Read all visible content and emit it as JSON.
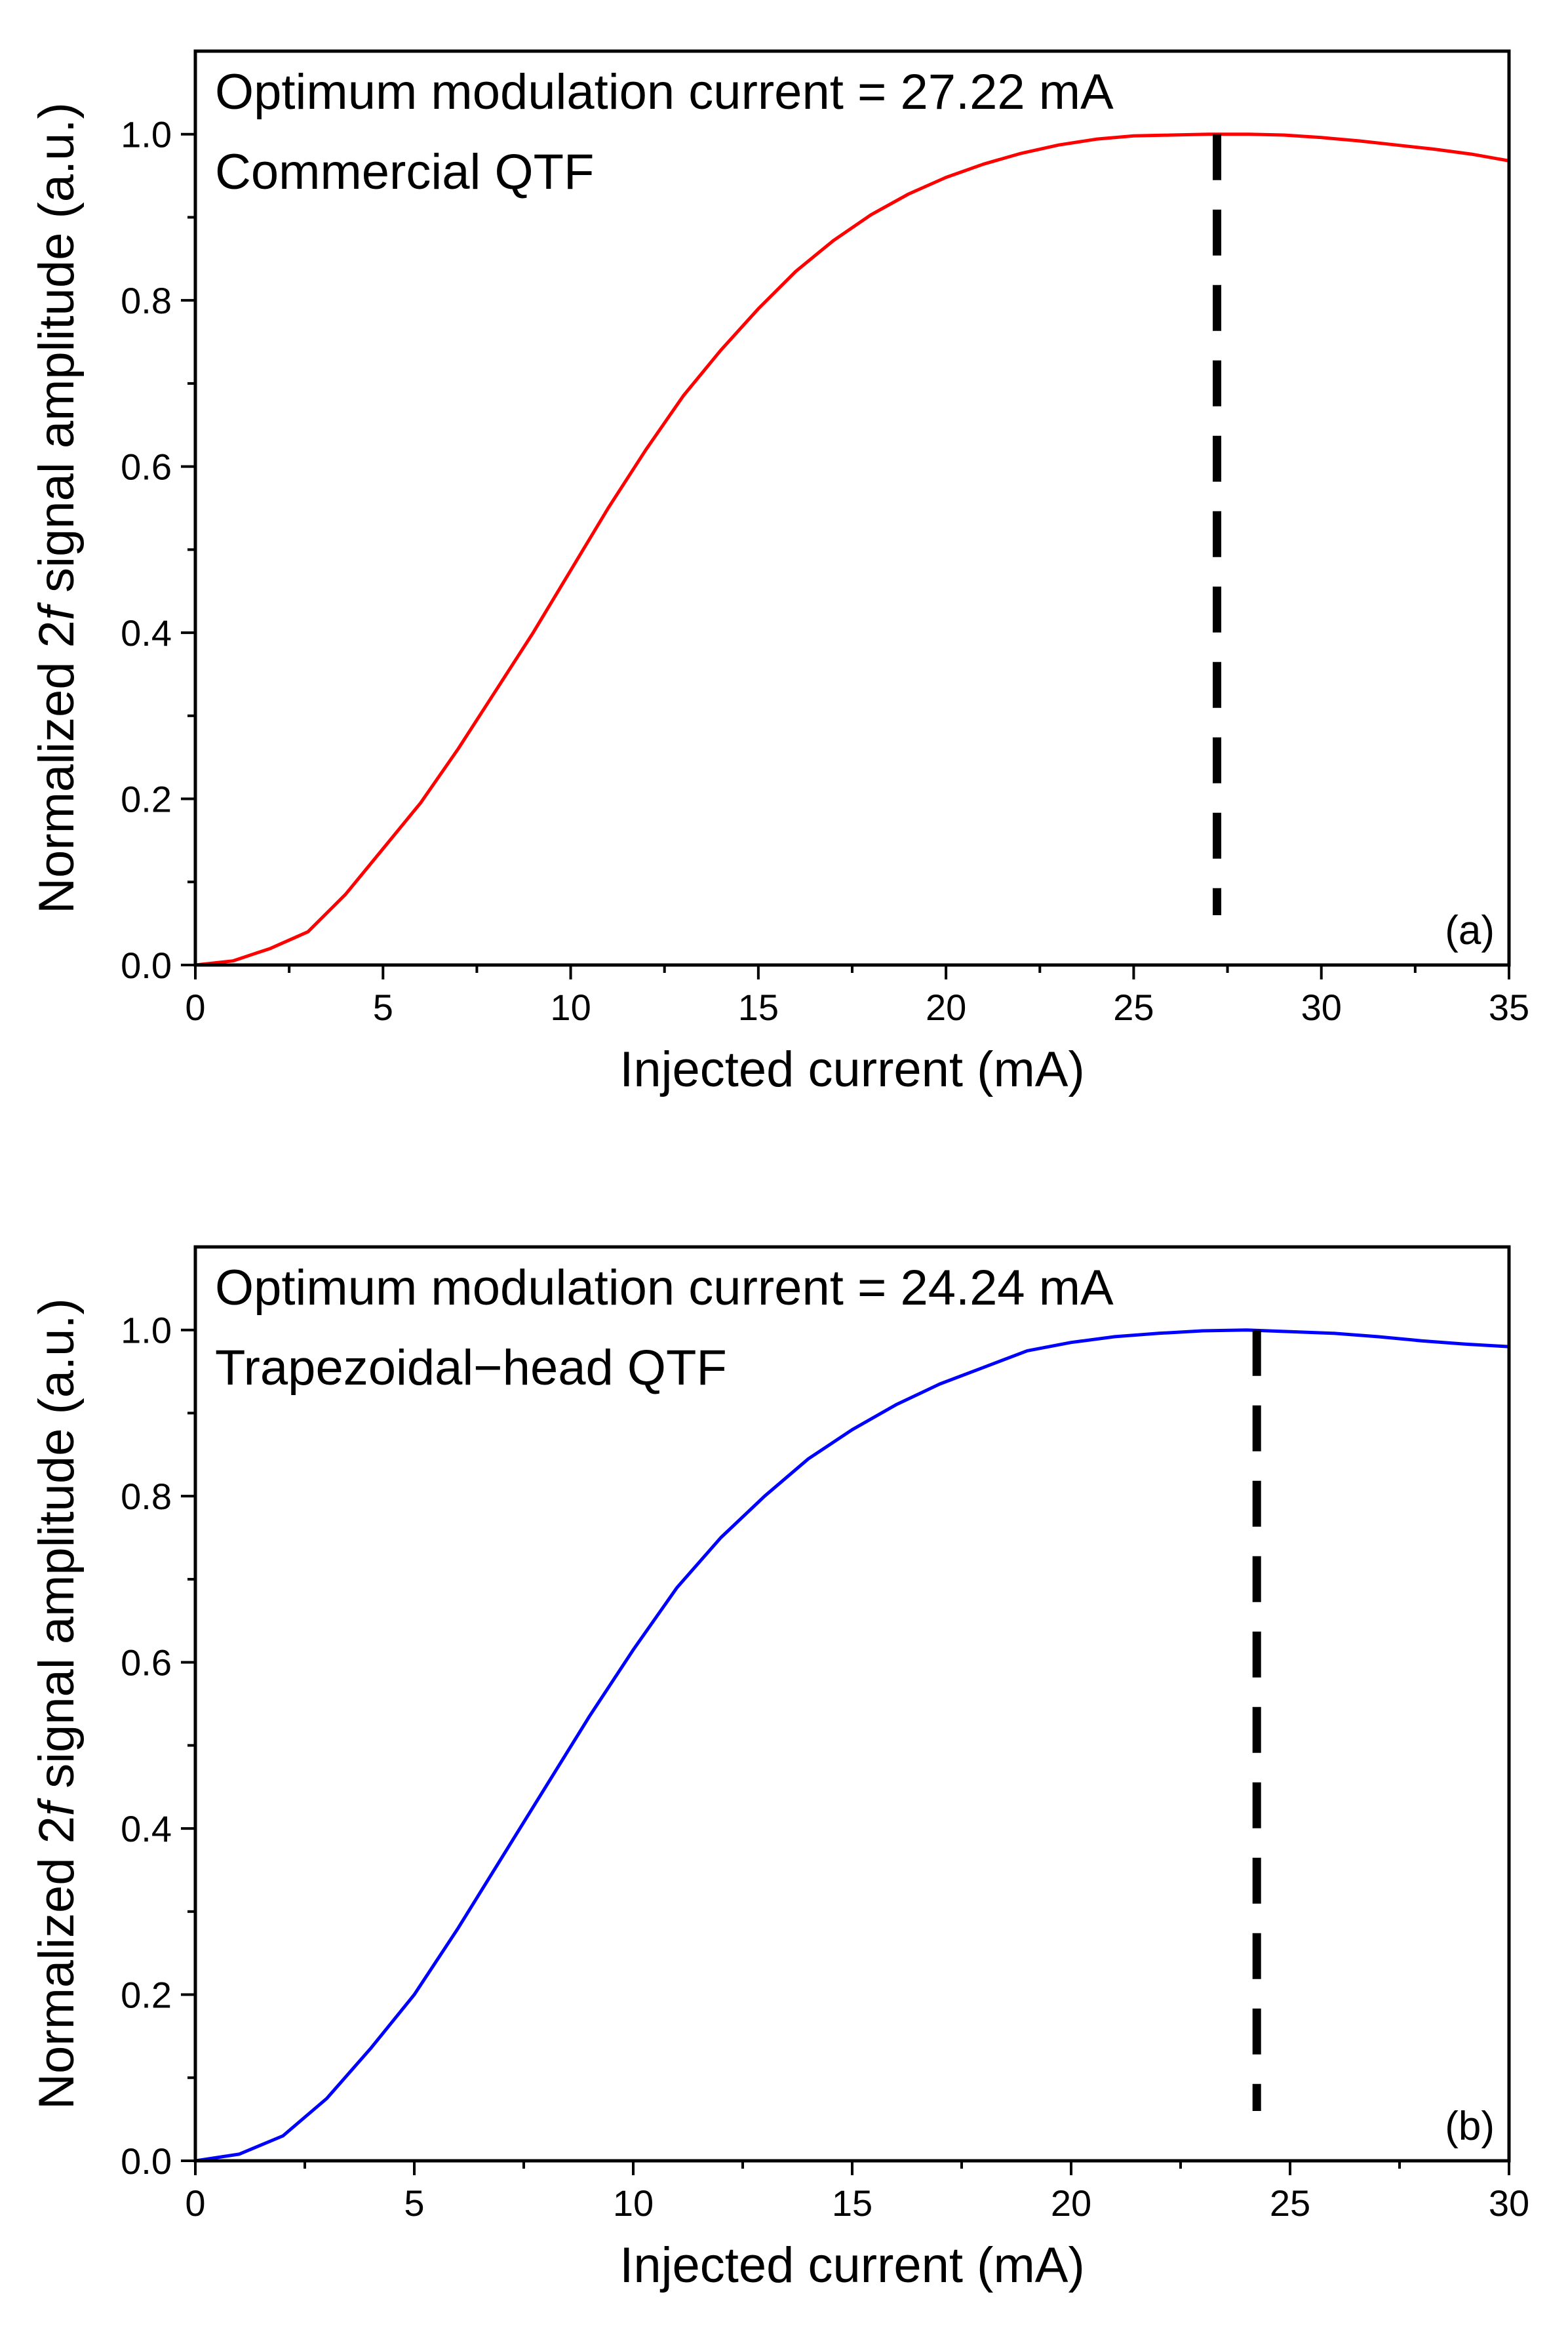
{
  "chart_data": [
    {
      "type": "line",
      "panel_label": "(a)",
      "annotations": [
        "Optimum modulation current = 27.22 mA",
        "Commercial QTF"
      ],
      "xlabel": "Injected current (mA)",
      "ylabel": {
        "prefix": "Normalized 2",
        "italic": "f",
        "suffix": " signal amplitude (a.u.)"
      },
      "xlim": [
        0,
        35
      ],
      "ylim": [
        0,
        1.1
      ],
      "xticks": [
        0,
        5,
        10,
        15,
        20,
        25,
        30,
        35
      ],
      "xtick_labels": [
        "0",
        "5",
        "10",
        "15",
        "20",
        "25",
        "30",
        "35"
      ],
      "yticks": [
        0,
        0.2,
        0.4,
        0.6,
        0.8,
        1.0
      ],
      "ytick_labels": [
        "0.0",
        "0.2",
        "0.4",
        "0.6",
        "0.8",
        "1.0"
      ],
      "line_color": "#ff0000",
      "optimum_x": 27.22,
      "marker_y_range": [
        0.06,
        1.0
      ],
      "series": [
        {
          "name": "Commercial QTF",
          "x": [
            0,
            1,
            2,
            3,
            4,
            5,
            6,
            7,
            8,
            9,
            10,
            11,
            12,
            13,
            14,
            15,
            16,
            17,
            18,
            19,
            20,
            21,
            22,
            23,
            24,
            25,
            26,
            27,
            28,
            29,
            30,
            31,
            32,
            33,
            34,
            35
          ],
          "y": [
            0.0,
            0.005,
            0.02,
            0.04,
            0.085,
            0.14,
            0.195,
            0.26,
            0.33,
            0.4,
            0.475,
            0.55,
            0.62,
            0.685,
            0.74,
            0.79,
            0.835,
            0.872,
            0.903,
            0.928,
            0.948,
            0.964,
            0.977,
            0.987,
            0.994,
            0.998,
            0.999,
            1.0,
            1.0,
            0.999,
            0.996,
            0.992,
            0.987,
            0.982,
            0.976,
            0.968
          ]
        }
      ]
    },
    {
      "type": "line",
      "panel_label": "(b)",
      "annotations": [
        "Optimum modulation current = 24.24 mA",
        "Trapezoidal−head QTF"
      ],
      "xlabel": "Injected current (mA)",
      "ylabel": {
        "prefix": "Normalized 2",
        "italic": "f",
        "suffix": " signal amplitude (a.u.)"
      },
      "xlim": [
        0,
        30
      ],
      "ylim": [
        0,
        1.1
      ],
      "xticks": [
        0,
        5,
        10,
        15,
        20,
        25,
        30
      ],
      "xtick_labels": [
        "0",
        "5",
        "10",
        "15",
        "20",
        "25",
        "30"
      ],
      "yticks": [
        0,
        0.2,
        0.4,
        0.6,
        0.8,
        1.0
      ],
      "ytick_labels": [
        "0.0",
        "0.2",
        "0.4",
        "0.6",
        "0.8",
        "1.0"
      ],
      "line_color": "#0000ff",
      "optimum_x": 24.24,
      "marker_y_range": [
        0.06,
        1.0
      ],
      "series": [
        {
          "name": "Trapezoidal−head QTF",
          "x": [
            0,
            1,
            2,
            3,
            4,
            5,
            6,
            7,
            8,
            9,
            10,
            11,
            12,
            13,
            14,
            15,
            16,
            17,
            18,
            19,
            20,
            21,
            22,
            23,
            24,
            25,
            26,
            27,
            28,
            29,
            30
          ],
          "y": [
            0.0,
            0.008,
            0.03,
            0.075,
            0.135,
            0.2,
            0.28,
            0.365,
            0.45,
            0.535,
            0.615,
            0.69,
            0.75,
            0.8,
            0.845,
            0.88,
            0.91,
            0.935,
            0.955,
            0.975,
            0.985,
            0.992,
            0.996,
            0.999,
            1.0,
            0.998,
            0.996,
            0.992,
            0.987,
            0.983,
            0.98
          ]
        }
      ]
    }
  ]
}
